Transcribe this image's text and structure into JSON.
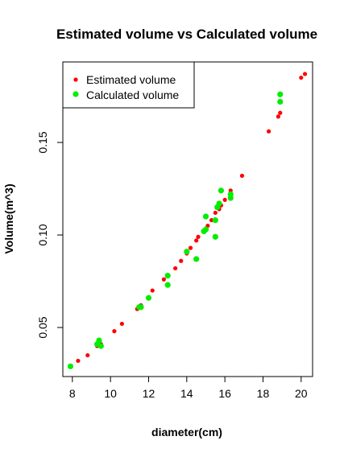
{
  "chart_data": {
    "type": "scatter",
    "title": "Estimated volume vs Calculated volume",
    "xlabel": "diameter(cm)",
    "ylabel": "Volume(m^3)",
    "xlim": [
      7.5,
      20.6
    ],
    "ylim": [
      0.0235,
      0.1935
    ],
    "xticks": [
      8,
      10,
      12,
      14,
      16,
      18,
      20
    ],
    "yticks": [
      0.05,
      0.1,
      0.15
    ],
    "ytick_labels": [
      "0.05",
      "0.10",
      "0.15"
    ],
    "grid": false,
    "legend_position": "top-left",
    "series": [
      {
        "name": "Estimated volume",
        "color": "#ff0000",
        "marker_size": "small",
        "points": [
          [
            8.3,
            0.032
          ],
          [
            8.8,
            0.035
          ],
          [
            9.3,
            0.04
          ],
          [
            9.5,
            0.041
          ],
          [
            10.2,
            0.048
          ],
          [
            10.6,
            0.052
          ],
          [
            11.4,
            0.06
          ],
          [
            11.6,
            0.062
          ],
          [
            12.2,
            0.07
          ],
          [
            12.8,
            0.076
          ],
          [
            13.0,
            0.078
          ],
          [
            13.4,
            0.082
          ],
          [
            13.7,
            0.086
          ],
          [
            14.0,
            0.09
          ],
          [
            14.2,
            0.093
          ],
          [
            14.5,
            0.097
          ],
          [
            14.6,
            0.099
          ],
          [
            14.9,
            0.102
          ],
          [
            15.1,
            0.105
          ],
          [
            15.3,
            0.108
          ],
          [
            15.5,
            0.112
          ],
          [
            15.7,
            0.114
          ],
          [
            15.8,
            0.116
          ],
          [
            16.0,
            0.119
          ],
          [
            16.3,
            0.124
          ],
          [
            16.9,
            0.132
          ],
          [
            18.3,
            0.156
          ],
          [
            18.8,
            0.164
          ],
          [
            18.9,
            0.166
          ],
          [
            20.0,
            0.185
          ],
          [
            20.2,
            0.187
          ]
        ]
      },
      {
        "name": "Calculated volume",
        "color": "#00ee00",
        "marker_size": "large",
        "points": [
          [
            7.9,
            0.029
          ],
          [
            9.3,
            0.041
          ],
          [
            9.4,
            0.043
          ],
          [
            9.5,
            0.04
          ],
          [
            11.5,
            0.061
          ],
          [
            11.6,
            0.061
          ],
          [
            12.0,
            0.066
          ],
          [
            13.0,
            0.078
          ],
          [
            13.0,
            0.073
          ],
          [
            14.0,
            0.091
          ],
          [
            14.5,
            0.087
          ],
          [
            14.9,
            0.102
          ],
          [
            15.0,
            0.11
          ],
          [
            15.0,
            0.103
          ],
          [
            15.5,
            0.099
          ],
          [
            15.5,
            0.108
          ],
          [
            15.6,
            0.115
          ],
          [
            15.7,
            0.117
          ],
          [
            15.8,
            0.124
          ],
          [
            16.3,
            0.12
          ],
          [
            16.3,
            0.122
          ],
          [
            18.9,
            0.172
          ],
          [
            18.9,
            0.176
          ]
        ]
      }
    ]
  }
}
